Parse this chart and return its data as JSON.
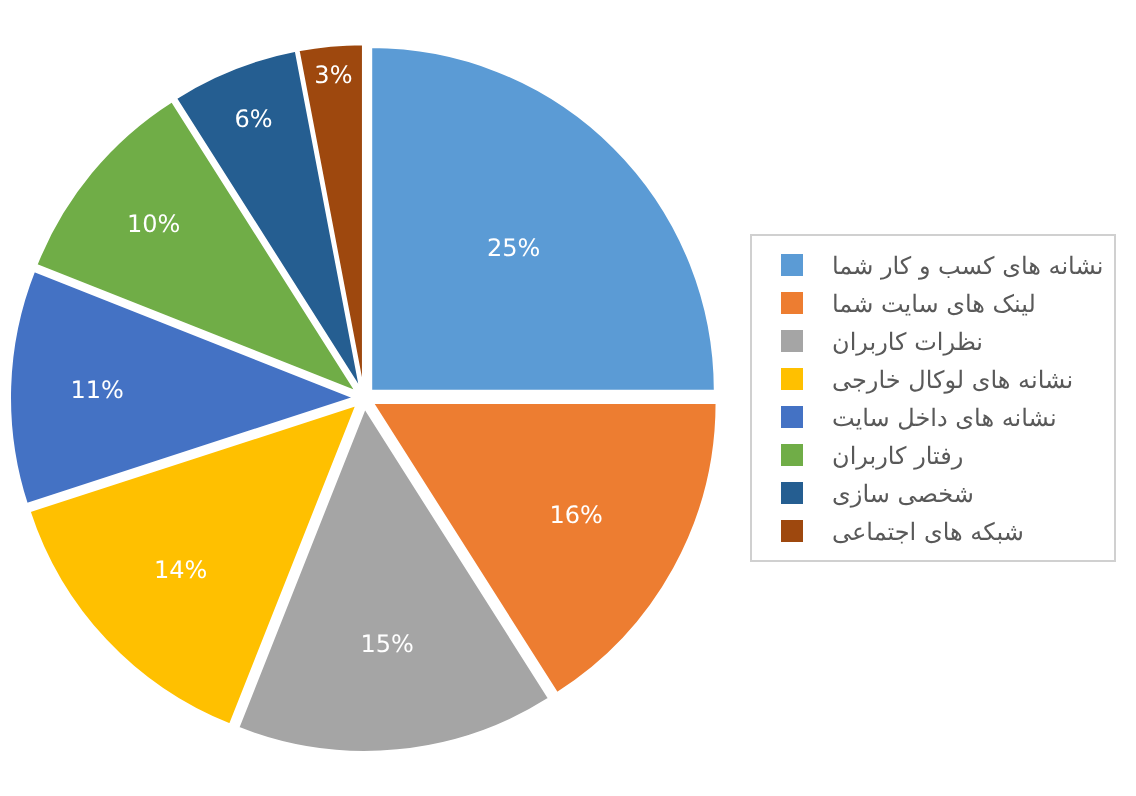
{
  "chart_data": {
    "type": "pie",
    "categories": [
      "نشانه های کسب و کار شما",
      "لینک های سایت شما",
      "نظرات کاربران",
      "نشانه های لوکال خارجی",
      "نشانه های داخل سایت",
      "رفتار کاربران",
      "شخصی سازی",
      "شبکه های اجتماعی"
    ],
    "values": [
      25,
      16,
      15,
      14,
      11,
      10,
      6,
      3
    ],
    "value_labels": [
      "25%",
      "16%",
      "15%",
      "14%",
      "11%",
      "10%",
      "6%",
      "3%"
    ],
    "colors": [
      "#5b9bd5",
      "#ed7d31",
      "#a5a5a5",
      "#ffc000",
      "#4472c4",
      "#70ad47",
      "#255e91",
      "#9e480e"
    ],
    "legend": "right"
  }
}
